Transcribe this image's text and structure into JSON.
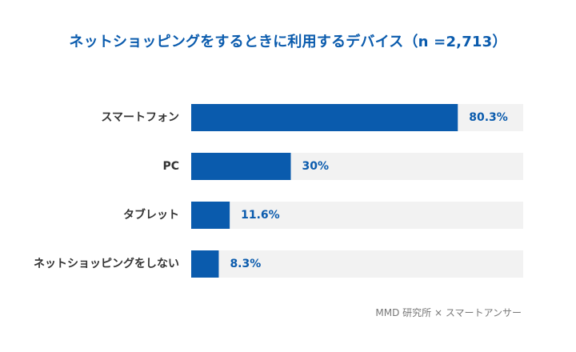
{
  "chart_data": {
    "type": "bar",
    "orientation": "horizontal",
    "title": "ネットショッピングをするときに利用するデバイス（n =2,713）",
    "categories": [
      "スマートフォン",
      "PC",
      "タブレット",
      "ネットショッピングをしない"
    ],
    "values": [
      80.3,
      30,
      11.6,
      8.3
    ],
    "value_labels": [
      "80.3%",
      "30%",
      "11.6%",
      "8.3%"
    ],
    "xlim": [
      0,
      100
    ],
    "unit": "%",
    "grid": false,
    "legend": "none",
    "colors": {
      "bar": "#0a5bad",
      "track": "#f2f2f2",
      "title": "#0a5bad",
      "value_label": "#0a5bad",
      "category_label": "#333333"
    }
  },
  "source": "MMD 研究所 × スマートアンサー"
}
